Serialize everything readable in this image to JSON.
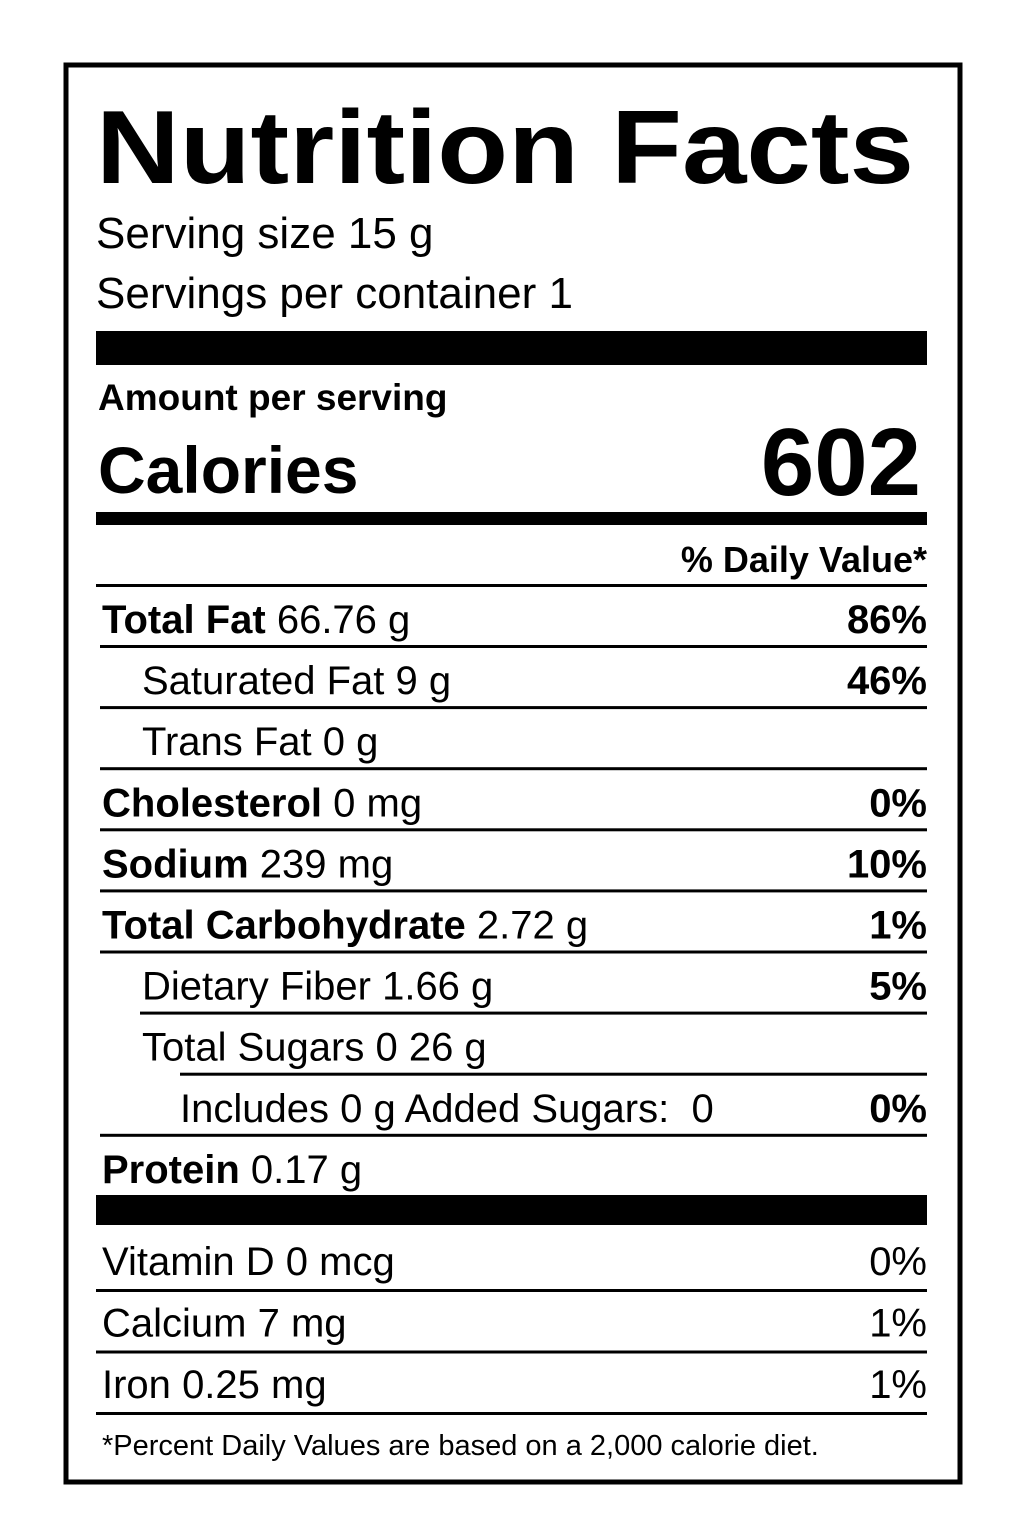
{
  "title": "Nutrition Facts",
  "serving_size": "Serving size 15 g",
  "servings_per_container": "Servings per container 1",
  "amount_per_serving": "Amount per serving",
  "calories": {
    "label": "Calories",
    "value": 602
  },
  "daily_value_header": "% Daily Value*",
  "nutrients": [
    {
      "name": "Total Fat",
      "amount": "66.76 g",
      "daily_value": "86%"
    },
    {
      "name": "Saturated Fat",
      "amount": "9 g",
      "daily_value": "46%"
    },
    {
      "name": "Trans Fat",
      "amount": "0 g"
    },
    {
      "name": "Cholesterol",
      "amount": "0 mg",
      "daily_value": "0%"
    },
    {
      "name": "Sodium",
      "amount": "239 mg",
      "daily_value": "10%"
    },
    {
      "name": "Total Carbohydrate",
      "amount": "2.72 g",
      "daily_value": "1%"
    },
    {
      "name": "Dietary Fiber",
      "amount": "1.66 g",
      "daily_value": "5%"
    },
    {
      "name": "Total Sugars",
      "amount": "0 26 g"
    },
    {
      "name": "Includes 0 g Added Sugars:  0",
      "daily_value": "0%"
    },
    {
      "name": "Protein",
      "amount": "0.17 g"
    }
  ],
  "vitamins": [
    {
      "name": "Vitamin D",
      "amount": "0 mcg",
      "daily_value": "0%"
    },
    {
      "name": "Calcium",
      "amount": "7 mg",
      "daily_value": "1%"
    },
    {
      "name": "Iron",
      "amount": "0.25 mg",
      "daily_value": "1%"
    }
  ],
  "footnote": "*Percent Daily Values are based on a 2,000 calorie diet."
}
